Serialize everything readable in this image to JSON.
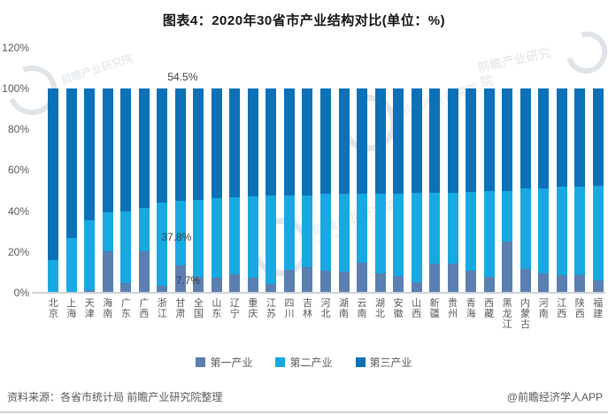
{
  "title": "图表4：2020年30省市产业结构对比(单位：%)",
  "chart_data": {
    "type": "bar",
    "stacked": true,
    "unit": "%",
    "title": "图表4：2020年30省市产业结构对比(单位：%)",
    "ylim": [
      0,
      120
    ],
    "yticks": [
      "0%",
      "20%",
      "40%",
      "60%",
      "80%",
      "100%",
      "120%"
    ],
    "grid": false,
    "legend_position": "bottom",
    "categories": [
      "北京",
      "上海",
      "天津",
      "海南",
      "广东",
      "广西",
      "浙江",
      "甘肃",
      "全国",
      "山东",
      "辽宁",
      "重庆",
      "江苏",
      "四川",
      "吉林",
      "河北",
      "湖南",
      "云南",
      "湖北",
      "安徽",
      "山西",
      "新疆",
      "贵州",
      "青海",
      "西藏",
      "黑龙江",
      "内蒙古",
      "河南",
      "江西",
      "陕西",
      "福建"
    ],
    "series": [
      {
        "name": "第一产业",
        "color": "#5a7fb0",
        "values": [
          0.4,
          0.3,
          1.5,
          20.5,
          4.8,
          20.5,
          3.3,
          13.3,
          7.7,
          7.3,
          9.0,
          7.2,
          4.4,
          11.4,
          12.6,
          10.7,
          10.2,
          14.7,
          9.5,
          8.2,
          5.4,
          14.4,
          14.2,
          11.0,
          7.9,
          25.1,
          11.7,
          9.7,
          8.7,
          8.7,
          6.2
        ]
      },
      {
        "name": "第二产业",
        "color": "#18a9e2",
        "values": [
          15.8,
          26.6,
          34.1,
          19.1,
          35.0,
          21.0,
          40.9,
          31.8,
          37.8,
          39.1,
          37.6,
          40.0,
          43.1,
          36.2,
          35.2,
          37.6,
          38.2,
          33.8,
          39.2,
          40.5,
          43.4,
          34.5,
          34.9,
          38.3,
          42.0,
          24.9,
          39.6,
          41.6,
          43.2,
          43.4,
          46.3
        ]
      },
      {
        "name": "第三产业",
        "color": "#0c71b7",
        "values": [
          83.8,
          73.1,
          64.4,
          60.4,
          60.2,
          58.5,
          55.8,
          54.9,
          54.5,
          53.6,
          53.4,
          52.8,
          52.5,
          52.4,
          52.2,
          51.7,
          51.6,
          51.5,
          51.3,
          51.3,
          51.2,
          51.1,
          50.9,
          50.7,
          50.1,
          50.0,
          48.7,
          48.7,
          48.1,
          47.9,
          47.5
        ]
      }
    ],
    "annotations": [
      {
        "text": "54.5%",
        "category": "全国",
        "series": "第三产业"
      },
      {
        "text": "37.8%",
        "category": "全国",
        "series": "第二产业"
      },
      {
        "text": "7.7%",
        "category": "全国",
        "series": "第一产业"
      }
    ]
  },
  "footer": {
    "source": "资料来源：各省市统计局 前瞻产业研究院整理",
    "credit": "@前瞻经济学人APP"
  },
  "watermark": {
    "brand": "前瞻产业研究院",
    "digits": "9 5 9 9 1"
  }
}
